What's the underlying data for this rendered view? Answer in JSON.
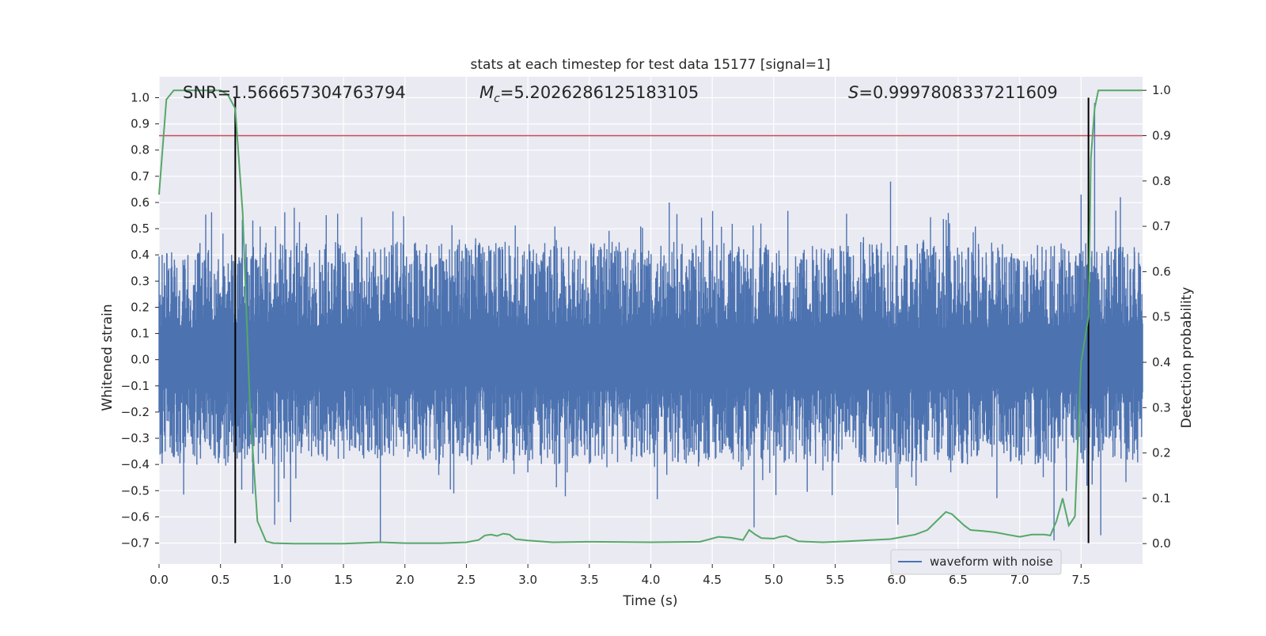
{
  "chart_data": {
    "type": "line",
    "title": "stats at each timestep for test data 15177 [signal=1]",
    "xlabel": "Time (s)",
    "ylabel_left": "Whitened strain",
    "ylabel_right": "Detection probability",
    "xlim": [
      0.0,
      8.0
    ],
    "ylim_left": [
      -0.78,
      1.08
    ],
    "ylim_right": [
      -0.045,
      1.03
    ],
    "x_ticks": [
      0.0,
      0.5,
      1.0,
      1.5,
      2.0,
      2.5,
      3.0,
      3.5,
      4.0,
      4.5,
      5.0,
      5.5,
      6.0,
      6.5,
      7.0,
      7.5
    ],
    "x_tick_labels": [
      "0.0",
      "0.5",
      "1.0",
      "1.5",
      "2.0",
      "2.5",
      "3.0",
      "3.5",
      "4.0",
      "4.5",
      "5.0",
      "5.5",
      "6.0",
      "6.5",
      "7.0",
      "7.5"
    ],
    "y_ticks_left": [
      1.0,
      0.9,
      0.8,
      0.7,
      0.6,
      0.5,
      0.4,
      0.3,
      0.2,
      0.1,
      0.0,
      -0.1,
      -0.2,
      -0.3,
      -0.4,
      -0.5,
      -0.6,
      -0.7
    ],
    "y_tick_labels_left": [
      "1.0",
      "0.9",
      "0.8",
      "0.7",
      "0.6",
      "0.5",
      "0.4",
      "0.3",
      "0.2",
      "0.1",
      "0.0",
      "−0.1",
      "−0.2",
      "−0.3",
      "−0.4",
      "−0.5",
      "−0.6",
      "−0.7"
    ],
    "y_ticks_right": [
      1.0,
      0.9,
      0.8,
      0.7,
      0.6,
      0.5,
      0.4,
      0.3,
      0.2,
      0.1,
      0.0
    ],
    "y_tick_labels_right": [
      "1.0",
      "0.9",
      "0.8",
      "0.7",
      "0.6",
      "0.5",
      "0.4",
      "0.3",
      "0.2",
      "0.1",
      "0.0"
    ],
    "annotations": {
      "snr": "SNR=1.566657304763794",
      "mc_symbol": "M",
      "mc_sub": "c",
      "mc_value": "=5.2026286125183105",
      "s_symbol": "S",
      "s_value": "=0.9997808337211609"
    },
    "threshold_line": {
      "axis": "right",
      "y": 0.9,
      "color": "#c44e52"
    },
    "vertical_lines": [
      {
        "x": 0.62,
        "ymin": -0.7,
        "ymax": 1.0,
        "color": "#000000"
      },
      {
        "x": 7.56,
        "ymin": -0.7,
        "ymax": 1.0,
        "color": "#000000"
      }
    ],
    "series": [
      {
        "name": "waveform with noise",
        "axis": "left",
        "color": "#4c72b0",
        "style": "dense noise trace",
        "x_range": [
          0.0,
          8.0
        ],
        "typical_envelope": [
          -0.35,
          0.42
        ],
        "notable_peaks": [
          {
            "x": 7.61,
            "y": 0.98
          },
          {
            "x": 7.56,
            "y": 0.64
          },
          {
            "x": 5.95,
            "y": 0.68
          },
          {
            "x": 7.5,
            "y": 0.63
          },
          {
            "x": 7.82,
            "y": 0.62
          },
          {
            "x": 6.42,
            "y": 0.56
          },
          {
            "x": 4.15,
            "y": 0.6
          },
          {
            "x": 0.62,
            "y": 0.55
          },
          {
            "x": 1.1,
            "y": 0.58
          }
        ],
        "notable_troughs": [
          {
            "x": 1.8,
            "y": -0.7
          },
          {
            "x": 7.66,
            "y": -0.67
          },
          {
            "x": 7.28,
            "y": -0.69
          },
          {
            "x": 0.94,
            "y": -0.63
          },
          {
            "x": 1.07,
            "y": -0.62
          },
          {
            "x": 4.84,
            "y": -0.64
          },
          {
            "x": 6.01,
            "y": -0.63
          }
        ]
      },
      {
        "name": "Detection probability",
        "axis": "right",
        "color": "#55a868",
        "x": [
          0.0,
          0.06,
          0.12,
          0.2,
          0.3,
          0.4,
          0.5,
          0.56,
          0.62,
          0.68,
          0.74,
          0.8,
          0.87,
          0.93,
          1.1,
          1.5,
          1.8,
          2.0,
          2.3,
          2.5,
          2.6,
          2.65,
          2.7,
          2.75,
          2.8,
          2.85,
          2.9,
          3.0,
          3.2,
          3.5,
          4.0,
          4.4,
          4.55,
          4.65,
          4.75,
          4.8,
          4.85,
          4.9,
          5.0,
          5.05,
          5.1,
          5.2,
          5.4,
          5.6,
          5.8,
          5.95,
          6.05,
          6.15,
          6.25,
          6.4,
          6.45,
          6.55,
          6.6,
          6.7,
          6.8,
          6.9,
          7.0,
          7.1,
          7.2,
          7.25,
          7.3,
          7.35,
          7.4,
          7.45,
          7.5,
          7.56,
          7.58,
          7.61,
          7.64,
          7.67,
          7.7,
          7.8,
          7.9,
          8.0
        ],
        "y": [
          0.77,
          0.98,
          1.0,
          1.0,
          1.0,
          1.0,
          1.0,
          0.99,
          0.96,
          0.73,
          0.3,
          0.05,
          0.005,
          0.001,
          0.0,
          0.0,
          0.003,
          0.001,
          0.001,
          0.003,
          0.008,
          0.018,
          0.02,
          0.017,
          0.022,
          0.02,
          0.01,
          0.007,
          0.003,
          0.004,
          0.003,
          0.004,
          0.015,
          0.013,
          0.008,
          0.03,
          0.02,
          0.012,
          0.011,
          0.015,
          0.017,
          0.005,
          0.003,
          0.005,
          0.008,
          0.01,
          0.015,
          0.02,
          0.03,
          0.07,
          0.065,
          0.04,
          0.03,
          0.028,
          0.025,
          0.02,
          0.015,
          0.02,
          0.02,
          0.018,
          0.05,
          0.1,
          0.04,
          0.06,
          0.4,
          0.5,
          0.85,
          0.96,
          1.0,
          1.0,
          1.0,
          1.0,
          1.0,
          1.0
        ]
      }
    ],
    "legend": {
      "position": "lower-right",
      "entries": [
        "waveform with noise"
      ]
    }
  }
}
